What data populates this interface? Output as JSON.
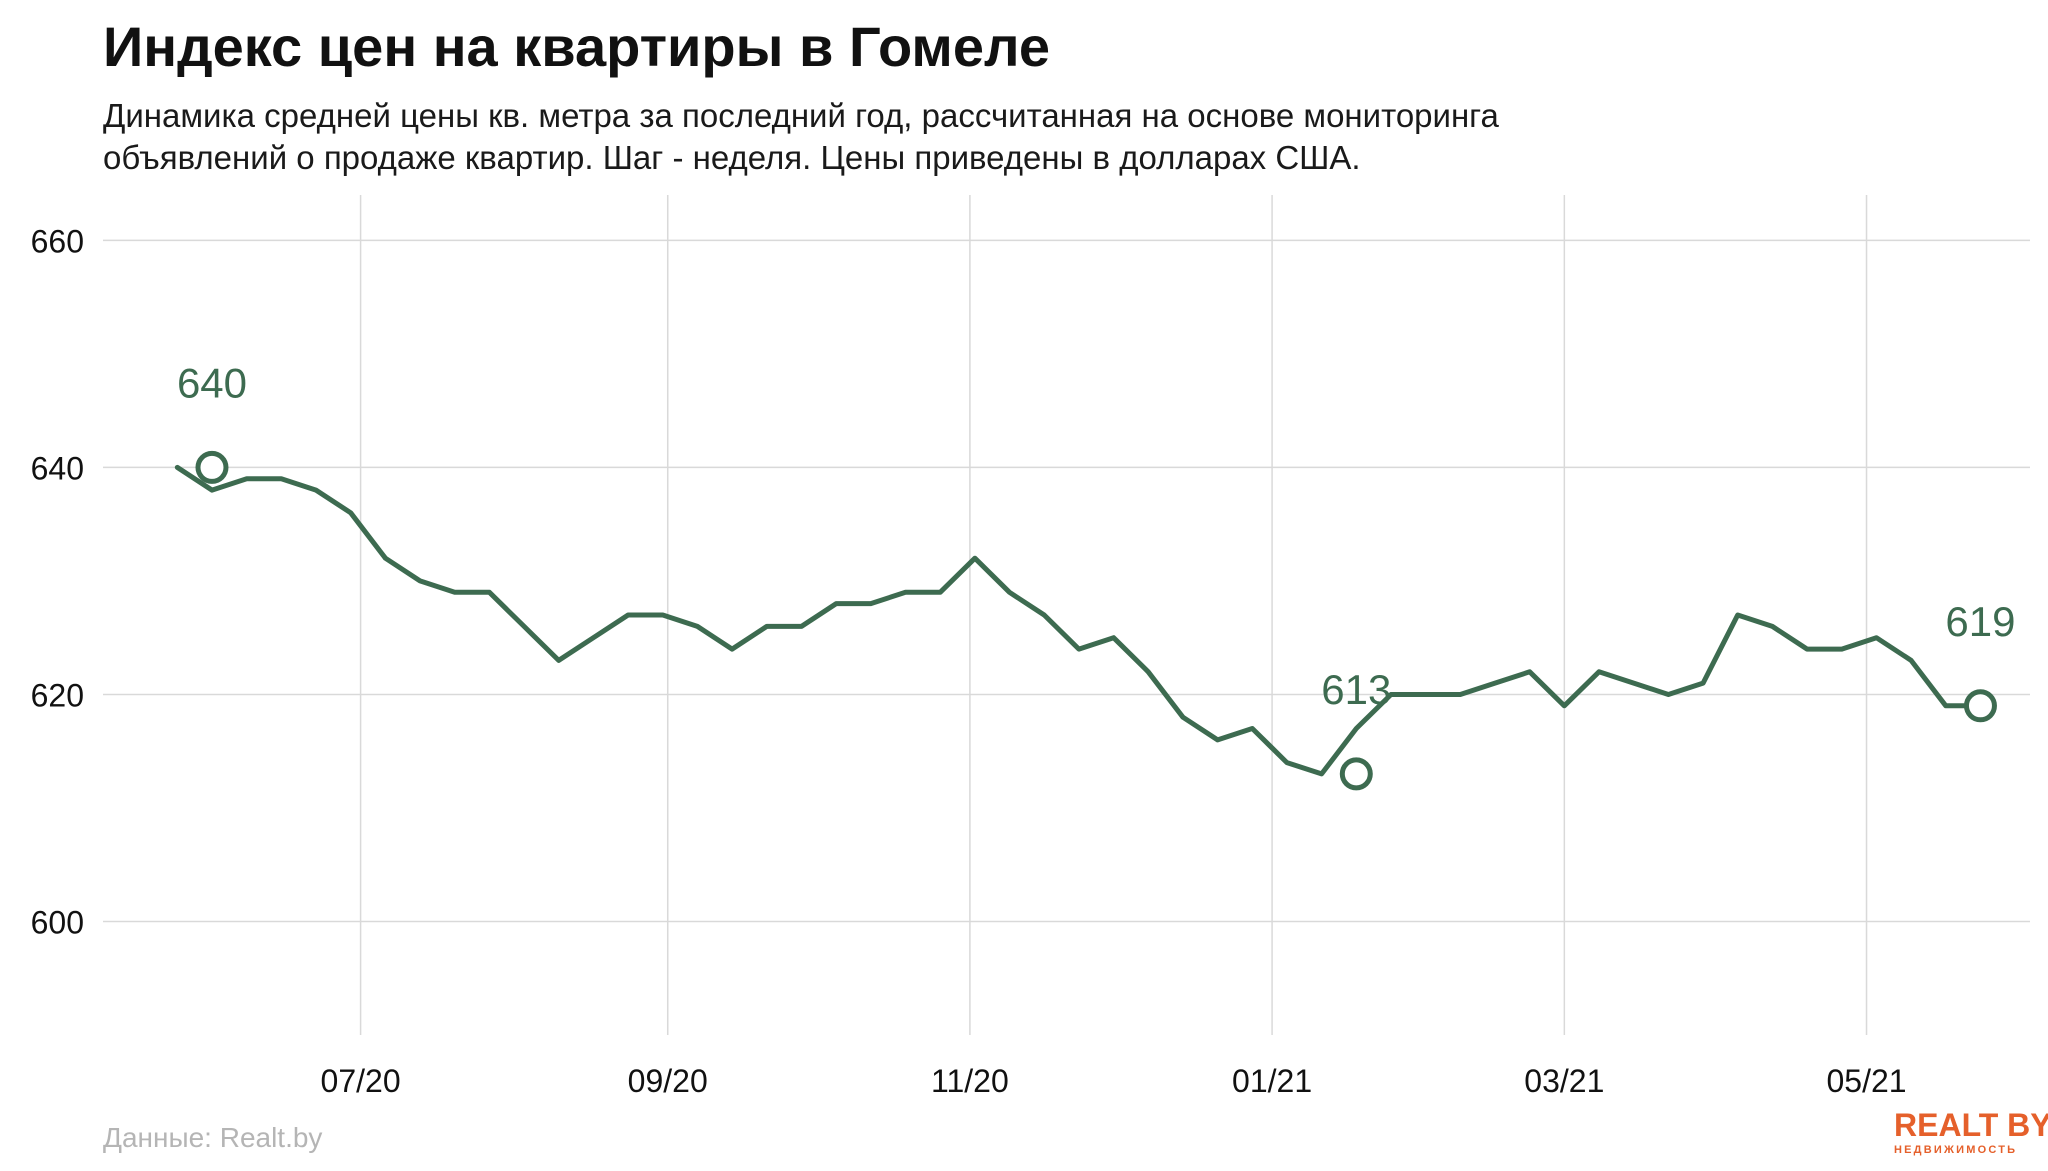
{
  "title": "Индекс цен на квартиры в Гомеле",
  "subtitle_lines": [
    "Динамика средней цены кв. метра за последний год, рассчитанная на основе мониторинга",
    "объявлений о продаже квартир. Шаг - неделя. Цены приведены в долларах США."
  ],
  "source": "Данные: Realt.by",
  "logo": {
    "name": "REALT BY",
    "tagline": "НЕДВИЖИМОСТЬ"
  },
  "colors": {
    "line": "#3d6b50",
    "grid": "#d9d9d9",
    "text": "#111111",
    "logo": "#e5602b"
  },
  "chart_data": {
    "type": "line",
    "title": "Индекс цен на квартиры в Гомеле",
    "xlabel": "",
    "ylabel": "",
    "ylim": [
      590,
      664
    ],
    "y_ticks": [
      600,
      620,
      640,
      660
    ],
    "y_tick_labels": [
      "600",
      "620",
      "640",
      "660"
    ],
    "x_ticks": [
      "2020-07-01",
      "2020-09-01",
      "2020-11-01",
      "2021-01-01",
      "2021-03-01",
      "2021-05-01"
    ],
    "x_tick_labels": [
      "07/20",
      "09/20",
      "11/20",
      "01/21",
      "03/21",
      "05/21"
    ],
    "grid": true,
    "series": [
      {
        "x": [
          "2020-05-25",
          "2020-06-01",
          "2020-06-08",
          "2020-06-15",
          "2020-06-22",
          "2020-06-29",
          "2020-07-06",
          "2020-07-13",
          "2020-07-20",
          "2020-07-27",
          "2020-08-03",
          "2020-08-10",
          "2020-08-17",
          "2020-08-24",
          "2020-08-31",
          "2020-09-07",
          "2020-09-14",
          "2020-09-21",
          "2020-09-28",
          "2020-10-05",
          "2020-10-12",
          "2020-10-19",
          "2020-10-26",
          "2020-11-02",
          "2020-11-09",
          "2020-11-16",
          "2020-11-23",
          "2020-11-30",
          "2020-12-07",
          "2020-12-14",
          "2020-12-21",
          "2020-12-28",
          "2021-01-04",
          "2021-01-11",
          "2021-01-18",
          "2021-01-25",
          "2021-02-01",
          "2021-02-08",
          "2021-02-15",
          "2021-02-22",
          "2021-03-01",
          "2021-03-08",
          "2021-03-15",
          "2021-03-22",
          "2021-03-29",
          "2021-04-05",
          "2021-04-12",
          "2021-04-19",
          "2021-04-26",
          "2021-05-03",
          "2021-05-10",
          "2021-05-17",
          "2021-05-24"
        ],
        "values": [
          640,
          638,
          639,
          639,
          638,
          636,
          632,
          630,
          629,
          629,
          626,
          623,
          625,
          627,
          627,
          626,
          624,
          626,
          626,
          628,
          628,
          629,
          629,
          632,
          629,
          627,
          624,
          625,
          622,
          618,
          616,
          617,
          614,
          613,
          617,
          620,
          620,
          620,
          621,
          622,
          619,
          622,
          621,
          620,
          621,
          627,
          626,
          624,
          624,
          625,
          623,
          619,
          619
        ],
        "annotations": [
          {
            "x": "2020-06-01",
            "y": 640,
            "label": "640"
          },
          {
            "x": "2021-01-18",
            "y": 613,
            "label": "613"
          },
          {
            "x": "2021-05-24",
            "y": 619,
            "label": "619"
          }
        ]
      }
    ]
  }
}
